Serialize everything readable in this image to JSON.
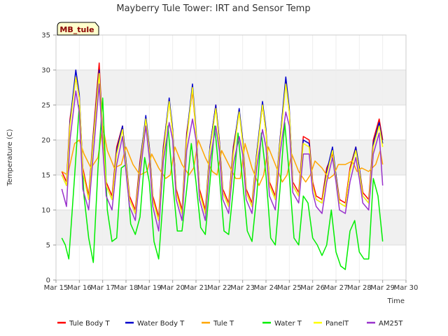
{
  "chart_data": {
    "type": "line",
    "title": "Mayberry Tule Tower: IRT and Sensor Temp",
    "xlabel": "Time",
    "ylabel": "Temperature (C)",
    "tag": "MB_tule",
    "ylim": [
      0,
      35
    ],
    "yticks": [
      0,
      5,
      10,
      15,
      20,
      25,
      30,
      35
    ],
    "xlim": [
      15,
      30
    ],
    "xticks": [
      15,
      16,
      17,
      18,
      19,
      20,
      21,
      22,
      23,
      24,
      25,
      26,
      27,
      28,
      29,
      30
    ],
    "xtick_labels": [
      "Mar 15",
      "Mar 16",
      "Mar 17",
      "Mar 18",
      "Mar 19",
      "Mar 20",
      "Mar 21",
      "Mar 22",
      "Mar 23",
      "Mar 24",
      "Mar 25",
      "Mar 26",
      "Mar 27",
      "Mar 28",
      "Mar 29",
      "Mar 30"
    ],
    "grid": true,
    "background_bands": "alternating light gray",
    "legend_position": "bottom",
    "series": [
      {
        "name": "Tule Body T",
        "color": "#ff0000",
        "x": [
          15.25,
          15.45,
          15.6,
          15.85,
          16.0,
          16.15,
          16.4,
          16.6,
          16.85,
          17.0,
          17.15,
          17.4,
          17.6,
          17.85,
          18.0,
          18.15,
          18.4,
          18.6,
          18.85,
          19.0,
          19.15,
          19.4,
          19.6,
          19.85,
          20.0,
          20.15,
          20.4,
          20.6,
          20.85,
          21.0,
          21.15,
          21.4,
          21.6,
          21.85,
          22.0,
          22.15,
          22.4,
          22.6,
          22.85,
          23.0,
          23.15,
          23.4,
          23.6,
          23.85,
          24.0,
          24.15,
          24.4,
          24.6,
          24.85,
          25.0,
          25.15,
          25.4,
          25.6,
          25.85,
          26.0,
          26.15,
          26.4,
          26.6,
          26.85,
          27.0,
          27.15,
          27.4,
          27.6,
          27.85,
          28.0,
          28.15,
          28.4,
          28.6,
          28.85,
          29.0
        ],
        "y": [
          15.5,
          14.0,
          23.0,
          29.0,
          26.0,
          16.0,
          12.0,
          21.0,
          31.0,
          21.0,
          14.0,
          12.0,
          19.0,
          22.0,
          17.0,
          12.0,
          10.0,
          17.0,
          23.0,
          19.0,
          12.0,
          9.0,
          19.0,
          25.5,
          21.0,
          13.0,
          10.0,
          21.0,
          27.0,
          21.0,
          13.0,
          10.0,
          19.0,
          25.0,
          20.0,
          13.0,
          11.0,
          19.0,
          24.0,
          20.0,
          13.0,
          11.0,
          18.0,
          25.0,
          21.0,
          14.0,
          12.0,
          20.0,
          28.5,
          24.0,
          14.0,
          12.5,
          20.5,
          20.0,
          14.0,
          12.0,
          11.5,
          16.0,
          18.0,
          15.0,
          11.5,
          11.0,
          16.0,
          19.0,
          16.0,
          12.5,
          11.5,
          20.0,
          23.0,
          20.0
        ]
      },
      {
        "name": "Water Body T",
        "color": "#0000cc",
        "x": [
          15.25,
          15.45,
          15.6,
          15.85,
          16.0,
          16.15,
          16.4,
          16.6,
          16.85,
          17.0,
          17.15,
          17.4,
          17.6,
          17.85,
          18.0,
          18.15,
          18.4,
          18.6,
          18.85,
          19.0,
          19.15,
          19.4,
          19.6,
          19.85,
          20.0,
          20.15,
          20.4,
          20.6,
          20.85,
          21.0,
          21.15,
          21.4,
          21.6,
          21.85,
          22.0,
          22.15,
          22.4,
          22.6,
          22.85,
          23.0,
          23.15,
          23.4,
          23.6,
          23.85,
          24.0,
          24.15,
          24.4,
          24.6,
          24.85,
          25.0,
          25.15,
          25.4,
          25.6,
          25.85,
          26.0,
          26.15,
          26.4,
          26.6,
          26.85,
          27.0,
          27.15,
          27.4,
          27.6,
          27.85,
          28.0,
          28.15,
          28.4,
          28.6,
          28.85,
          29.0
        ],
        "y": [
          15.0,
          13.5,
          22.5,
          30.0,
          26.5,
          15.5,
          11.5,
          20.5,
          30.0,
          20.5,
          13.5,
          11.5,
          18.5,
          22.0,
          17.0,
          11.5,
          9.5,
          16.5,
          23.5,
          19.0,
          11.5,
          8.5,
          18.5,
          26.0,
          21.5,
          12.5,
          9.5,
          20.5,
          28.0,
          21.5,
          12.5,
          9.5,
          19.0,
          25.0,
          20.0,
          12.5,
          10.5,
          18.5,
          24.5,
          20.0,
          12.5,
          10.5,
          18.0,
          25.5,
          21.5,
          13.5,
          11.5,
          20.0,
          29.0,
          24.5,
          13.5,
          12.0,
          20.0,
          19.5,
          13.5,
          11.5,
          11.0,
          15.5,
          19.0,
          15.0,
          11.0,
          10.5,
          15.5,
          19.0,
          16.0,
          12.0,
          11.0,
          19.5,
          22.5,
          19.5
        ]
      },
      {
        "name": "Tule T",
        "color": "#ffa500",
        "x": [
          15.25,
          15.5,
          15.8,
          16.0,
          16.2,
          16.5,
          16.8,
          17.0,
          17.2,
          17.5,
          17.8,
          18.0,
          18.3,
          18.6,
          18.9,
          19.1,
          19.4,
          19.7,
          19.9,
          20.1,
          20.4,
          20.7,
          20.9,
          21.1,
          21.4,
          21.7,
          21.9,
          22.1,
          22.4,
          22.7,
          22.9,
          23.1,
          23.4,
          23.7,
          23.9,
          24.1,
          24.4,
          24.7,
          24.9,
          25.1,
          25.4,
          25.7,
          25.9,
          26.1,
          26.4,
          26.7,
          26.9,
          27.1,
          27.4,
          27.7,
          27.9,
          28.1,
          28.4,
          28.7,
          28.9,
          29.0
        ],
        "y": [
          15.5,
          15.0,
          19.5,
          20.0,
          18.0,
          16.0,
          17.5,
          22.0,
          18.5,
          16.0,
          16.5,
          19.0,
          16.5,
          15.0,
          15.5,
          18.0,
          16.0,
          14.5,
          15.0,
          19.0,
          16.5,
          15.0,
          16.0,
          20.0,
          17.5,
          15.5,
          15.0,
          18.5,
          16.5,
          14.5,
          14.5,
          19.5,
          16.0,
          13.5,
          15.0,
          19.0,
          16.5,
          14.0,
          15.0,
          18.0,
          15.5,
          14.0,
          15.0,
          17.0,
          16.0,
          14.5,
          15.0,
          16.5,
          16.5,
          17.0,
          15.5,
          16.0,
          15.5,
          16.5,
          18.5,
          16.5
        ]
      },
      {
        "name": "Water T",
        "color": "#00ee00",
        "x": [
          15.25,
          15.4,
          15.55,
          15.8,
          16.0,
          16.2,
          16.4,
          16.6,
          16.8,
          17.0,
          17.2,
          17.4,
          17.6,
          17.8,
          18.0,
          18.2,
          18.4,
          18.6,
          18.8,
          19.0,
          19.2,
          19.4,
          19.6,
          19.8,
          20.0,
          20.2,
          20.4,
          20.6,
          20.8,
          21.0,
          21.2,
          21.4,
          21.6,
          21.8,
          22.0,
          22.2,
          22.4,
          22.6,
          22.8,
          23.0,
          23.2,
          23.4,
          23.6,
          23.8,
          24.0,
          24.2,
          24.4,
          24.6,
          24.8,
          25.0,
          25.2,
          25.4,
          25.6,
          25.8,
          26.0,
          26.2,
          26.4,
          26.6,
          26.8,
          27.0,
          27.2,
          27.4,
          27.6,
          27.8,
          28.0,
          28.2,
          28.4,
          28.6,
          28.8,
          29.0
        ],
        "y": [
          6.0,
          5.0,
          3.0,
          15.0,
          25.0,
          12.0,
          6.0,
          2.5,
          16.0,
          26.0,
          10.0,
          5.5,
          6.0,
          16.0,
          16.5,
          8.0,
          6.5,
          9.0,
          17.5,
          14.0,
          5.5,
          3.0,
          12.0,
          22.0,
          14.0,
          7.0,
          7.0,
          13.0,
          19.5,
          14.0,
          7.5,
          6.5,
          14.0,
          22.0,
          15.0,
          7.0,
          6.5,
          13.0,
          21.0,
          14.0,
          7.0,
          5.5,
          12.0,
          21.0,
          15.0,
          6.0,
          5.0,
          13.0,
          22.5,
          15.0,
          6.0,
          5.0,
          12.0,
          11.0,
          6.0,
          5.0,
          3.5,
          5.0,
          10.0,
          4.0,
          2.0,
          1.5,
          7.0,
          8.5,
          4.0,
          3.0,
          3.0,
          14.5,
          12.0,
          5.5
        ]
      },
      {
        "name": "PanelT",
        "color": "#ffff00",
        "x": [
          15.25,
          15.45,
          15.6,
          15.85,
          16.0,
          16.15,
          16.4,
          16.6,
          16.85,
          17.0,
          17.15,
          17.4,
          17.6,
          17.85,
          18.0,
          18.15,
          18.4,
          18.6,
          18.85,
          19.0,
          19.15,
          19.4,
          19.6,
          19.85,
          20.0,
          20.15,
          20.4,
          20.6,
          20.85,
          21.0,
          21.15,
          21.4,
          21.6,
          21.85,
          22.0,
          22.15,
          22.4,
          22.6,
          22.85,
          23.0,
          23.15,
          23.4,
          23.6,
          23.85,
          24.0,
          24.15,
          24.4,
          24.6,
          24.85,
          25.0,
          25.15,
          25.4,
          25.6,
          25.85,
          26.0,
          26.15,
          26.4,
          26.6,
          26.85,
          27.0,
          27.15,
          27.4,
          27.6,
          27.85,
          28.0,
          28.15,
          28.4,
          28.6,
          28.85,
          29.0
        ],
        "y": [
          15.0,
          13.5,
          22.0,
          29.0,
          26.0,
          15.5,
          11.5,
          20.0,
          29.5,
          20.5,
          13.5,
          11.5,
          18.0,
          21.5,
          16.5,
          11.5,
          9.5,
          16.0,
          23.0,
          18.5,
          11.5,
          8.5,
          18.0,
          25.5,
          21.0,
          12.5,
          9.5,
          20.0,
          27.5,
          21.0,
          12.5,
          9.5,
          18.5,
          24.5,
          19.5,
          12.5,
          10.5,
          18.0,
          24.0,
          19.5,
          12.5,
          10.5,
          17.5,
          25.0,
          21.0,
          13.5,
          11.5,
          19.5,
          28.0,
          24.0,
          13.5,
          12.0,
          19.5,
          19.0,
          13.5,
          11.5,
          11.0,
          15.0,
          18.5,
          14.5,
          11.0,
          10.5,
          15.5,
          18.5,
          15.5,
          12.0,
          11.0,
          19.0,
          22.0,
          19.0
        ]
      },
      {
        "name": "AM25T",
        "color": "#9932cc",
        "x": [
          15.25,
          15.45,
          15.6,
          15.85,
          16.0,
          16.15,
          16.4,
          16.6,
          16.85,
          17.0,
          17.15,
          17.4,
          17.6,
          17.85,
          18.0,
          18.15,
          18.4,
          18.6,
          18.85,
          19.0,
          19.15,
          19.4,
          19.6,
          19.85,
          20.0,
          20.15,
          20.4,
          20.6,
          20.85,
          21.0,
          21.15,
          21.4,
          21.6,
          21.85,
          22.0,
          22.15,
          22.4,
          22.6,
          22.85,
          23.0,
          23.15,
          23.4,
          23.6,
          23.85,
          24.0,
          24.15,
          24.4,
          24.6,
          24.85,
          25.0,
          25.15,
          25.4,
          25.6,
          25.85,
          26.0,
          26.15,
          26.4,
          26.6,
          26.85,
          27.0,
          27.15,
          27.4,
          27.6,
          27.85,
          28.0,
          28.15,
          28.4,
          28.6,
          28.85,
          29.0
        ],
        "y": [
          13.0,
          10.5,
          20.0,
          27.0,
          24.0,
          13.0,
          10.0,
          18.0,
          28.0,
          19.0,
          12.0,
          10.0,
          16.5,
          20.5,
          15.5,
          10.5,
          8.5,
          15.0,
          22.0,
          17.5,
          10.5,
          7.0,
          17.0,
          22.5,
          20.0,
          11.5,
          8.5,
          18.5,
          23.0,
          20.0,
          11.5,
          8.5,
          17.0,
          22.0,
          18.5,
          11.5,
          9.5,
          16.5,
          20.5,
          18.0,
          11.5,
          9.5,
          16.0,
          21.5,
          19.0,
          12.0,
          10.0,
          18.0,
          24.0,
          22.0,
          12.5,
          11.0,
          18.0,
          18.0,
          12.5,
          10.5,
          9.5,
          14.0,
          17.5,
          14.0,
          10.0,
          9.5,
          14.0,
          17.5,
          14.5,
          11.0,
          10.0,
          18.0,
          21.0,
          13.5
        ]
      }
    ]
  }
}
